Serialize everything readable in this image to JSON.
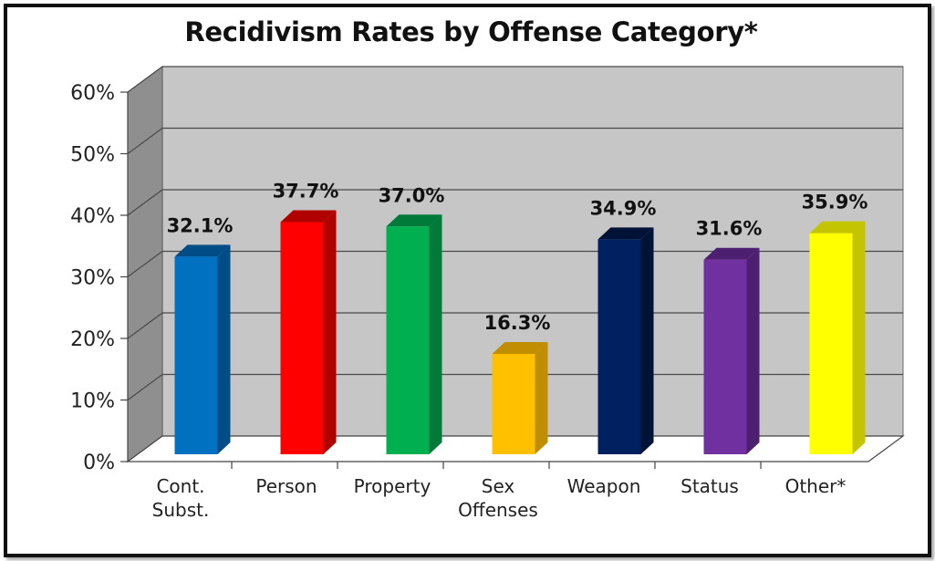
{
  "chart_data": {
    "type": "bar",
    "title": "Recidivism Rates by Offense Category*",
    "xlabel": "",
    "ylabel": "",
    "ylim": [
      0,
      60
    ],
    "yticks": [
      "0%",
      "10%",
      "20%",
      "30%",
      "40%",
      "50%",
      "60%"
    ],
    "grid": true,
    "legend": "none",
    "categories": [
      [
        "Cont.",
        "Subst."
      ],
      [
        "Person"
      ],
      [
        "Property"
      ],
      [
        "Sex",
        "Offenses"
      ],
      [
        "Weapon"
      ],
      [
        "Status"
      ],
      [
        "Other*"
      ]
    ],
    "values": [
      32.1,
      37.7,
      37.0,
      16.3,
      34.9,
      31.6,
      35.9
    ],
    "data_labels": [
      "32.1%",
      "37.7%",
      "37.0%",
      "16.3%",
      "34.9%",
      "31.6%",
      "35.9%"
    ],
    "colors": [
      "#0070C0",
      "#FF0000",
      "#00B050",
      "#FFC000",
      "#002060",
      "#7030A0",
      "#FFFF00"
    ],
    "side_colors": [
      "#004C87",
      "#B00000",
      "#007A38",
      "#C08E00",
      "#001236",
      "#4D1F70",
      "#C4C400"
    ]
  }
}
